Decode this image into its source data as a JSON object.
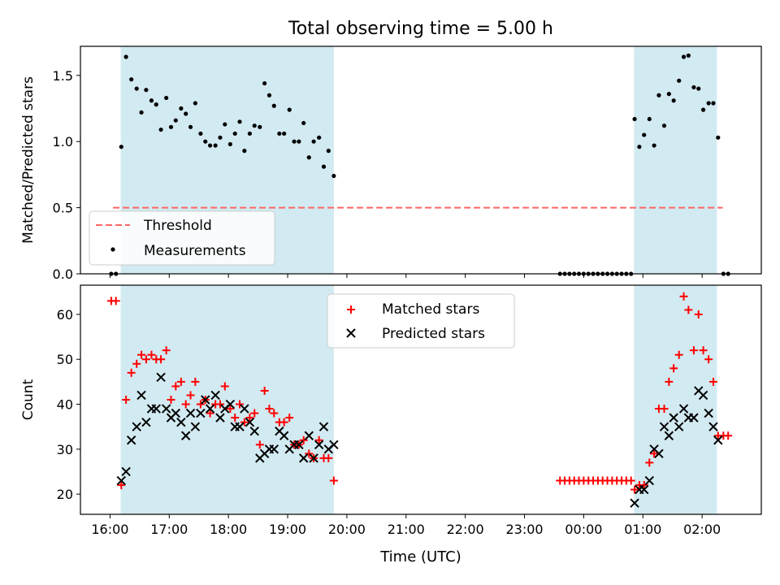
{
  "figure_title": "Total observing time = 5.00 h",
  "xlabel": "Time (UTC)",
  "xtick_labels": [
    "16:00",
    "17:00",
    "18:00",
    "19:00",
    "20:00",
    "21:00",
    "22:00",
    "23:00",
    "00:00",
    "01:00",
    "02:00"
  ],
  "colors": {
    "shade": "#add8e6",
    "threshold": "#ff6666",
    "measurement": "#000000",
    "matched": "#ff0000",
    "predicted": "#000000"
  },
  "chart_data": [
    {
      "type": "scatter",
      "ylabel": "Matched/Predicted stars",
      "ylim": [
        0,
        1.72
      ],
      "yticks": [
        0.0,
        0.5,
        1.0,
        1.5
      ],
      "xlim": [
        15.5,
        27.0
      ],
      "shaded_intervals": [
        [
          16.18,
          19.78
        ],
        [
          24.85,
          26.25
        ]
      ],
      "threshold": {
        "name": "Threshold",
        "y": 0.5,
        "x_range": [
          16.05,
          26.35
        ],
        "style": "dashed"
      },
      "legend": {
        "position": "lower-left",
        "entries": [
          "Threshold",
          "Measurements"
        ]
      },
      "series": [
        {
          "name": "Measurements",
          "points": [
            [
              16.02,
              0.0
            ],
            [
              16.1,
              0.0
            ],
            [
              16.19,
              0.96
            ],
            [
              16.27,
              1.64
            ],
            [
              16.36,
              1.47
            ],
            [
              16.45,
              1.4
            ],
            [
              16.53,
              1.22
            ],
            [
              16.61,
              1.39
            ],
            [
              16.7,
              1.31
            ],
            [
              16.78,
              1.28
            ],
            [
              16.86,
              1.09
            ],
            [
              16.95,
              1.33
            ],
            [
              17.03,
              1.11
            ],
            [
              17.11,
              1.16
            ],
            [
              17.2,
              1.25
            ],
            [
              17.28,
              1.21
            ],
            [
              17.36,
              1.11
            ],
            [
              17.44,
              1.29
            ],
            [
              17.53,
              1.06
            ],
            [
              17.61,
              1.0
            ],
            [
              17.69,
              0.97
            ],
            [
              17.78,
              0.97
            ],
            [
              17.86,
              1.03
            ],
            [
              17.94,
              1.13
            ],
            [
              18.03,
              0.98
            ],
            [
              18.11,
              1.06
            ],
            [
              18.19,
              1.15
            ],
            [
              18.27,
              0.93
            ],
            [
              18.36,
              1.06
            ],
            [
              18.44,
              1.12
            ],
            [
              18.53,
              1.11
            ],
            [
              18.61,
              1.44
            ],
            [
              18.69,
              1.35
            ],
            [
              18.77,
              1.27
            ],
            [
              18.86,
              1.06
            ],
            [
              18.94,
              1.06
            ],
            [
              19.03,
              1.24
            ],
            [
              19.11,
              1.0
            ],
            [
              19.19,
              1.0
            ],
            [
              19.27,
              1.14
            ],
            [
              19.36,
              0.88
            ],
            [
              19.44,
              1.0
            ],
            [
              19.53,
              1.03
            ],
            [
              19.61,
              0.81
            ],
            [
              19.69,
              0.93
            ],
            [
              19.78,
              0.74
            ],
            [
              23.6,
              0.0
            ],
            [
              23.68,
              0.0
            ],
            [
              23.76,
              0.0
            ],
            [
              23.84,
              0.0
            ],
            [
              23.92,
              0.0
            ],
            [
              24.0,
              0.0
            ],
            [
              24.08,
              0.0
            ],
            [
              24.16,
              0.0
            ],
            [
              24.24,
              0.0
            ],
            [
              24.32,
              0.0
            ],
            [
              24.4,
              0.0
            ],
            [
              24.48,
              0.0
            ],
            [
              24.56,
              0.0
            ],
            [
              24.64,
              0.0
            ],
            [
              24.72,
              0.0
            ],
            [
              24.8,
              0.0
            ],
            [
              24.86,
              1.17
            ],
            [
              24.94,
              0.96
            ],
            [
              25.02,
              1.05
            ],
            [
              25.11,
              1.17
            ],
            [
              25.19,
              0.97
            ],
            [
              25.27,
              1.35
            ],
            [
              25.36,
              1.12
            ],
            [
              25.44,
              1.36
            ],
            [
              25.52,
              1.31
            ],
            [
              25.61,
              1.46
            ],
            [
              25.69,
              1.64
            ],
            [
              25.77,
              1.65
            ],
            [
              25.86,
              1.41
            ],
            [
              25.94,
              1.4
            ],
            [
              26.02,
              1.24
            ],
            [
              26.11,
              1.29
            ],
            [
              26.19,
              1.29
            ],
            [
              26.27,
              1.03
            ],
            [
              26.36,
              0.0
            ],
            [
              26.44,
              0.0
            ]
          ]
        }
      ]
    },
    {
      "type": "scatter",
      "ylabel": "Count",
      "ylim": [
        15.5,
        66.5
      ],
      "yticks": [
        20,
        30,
        40,
        50,
        60
      ],
      "xlim": [
        15.5,
        27.0
      ],
      "shaded_intervals": [
        [
          16.18,
          19.78
        ],
        [
          24.85,
          26.25
        ]
      ],
      "legend": {
        "position": "top-center",
        "entries": [
          "Matched stars",
          "Predicted stars"
        ]
      },
      "series": [
        {
          "name": "Matched stars",
          "marker": "plus",
          "points": [
            [
              16.02,
              63
            ],
            [
              16.1,
              63
            ],
            [
              16.19,
              22
            ],
            [
              16.27,
              41
            ],
            [
              16.36,
              47
            ],
            [
              16.45,
              49
            ],
            [
              16.53,
              51
            ],
            [
              16.61,
              50
            ],
            [
              16.7,
              51
            ],
            [
              16.78,
              50
            ],
            [
              16.86,
              50
            ],
            [
              16.95,
              52
            ],
            [
              17.03,
              41
            ],
            [
              17.11,
              44
            ],
            [
              17.2,
              45
            ],
            [
              17.28,
              40
            ],
            [
              17.36,
              42
            ],
            [
              17.44,
              45
            ],
            [
              17.53,
              40
            ],
            [
              17.61,
              41
            ],
            [
              17.69,
              38
            ],
            [
              17.78,
              40
            ],
            [
              17.86,
              40
            ],
            [
              17.94,
              44
            ],
            [
              18.03,
              39
            ],
            [
              18.11,
              37
            ],
            [
              18.19,
              40
            ],
            [
              18.27,
              36
            ],
            [
              18.36,
              37
            ],
            [
              18.44,
              38
            ],
            [
              18.53,
              31
            ],
            [
              18.61,
              43
            ],
            [
              18.69,
              39
            ],
            [
              18.77,
              38
            ],
            [
              18.86,
              36
            ],
            [
              18.94,
              36
            ],
            [
              19.03,
              37
            ],
            [
              19.11,
              31
            ],
            [
              19.19,
              31
            ],
            [
              19.27,
              32
            ],
            [
              19.36,
              29
            ],
            [
              19.44,
              28
            ],
            [
              19.53,
              32
            ],
            [
              19.61,
              28
            ],
            [
              19.69,
              28
            ],
            [
              19.78,
              23
            ],
            [
              23.6,
              23
            ],
            [
              23.68,
              23
            ],
            [
              23.76,
              23
            ],
            [
              23.84,
              23
            ],
            [
              23.92,
              23
            ],
            [
              24.0,
              23
            ],
            [
              24.08,
              23
            ],
            [
              24.16,
              23
            ],
            [
              24.24,
              23
            ],
            [
              24.32,
              23
            ],
            [
              24.4,
              23
            ],
            [
              24.48,
              23
            ],
            [
              24.56,
              23
            ],
            [
              24.64,
              23
            ],
            [
              24.72,
              23
            ],
            [
              24.8,
              23
            ],
            [
              24.86,
              21
            ],
            [
              24.94,
              22
            ],
            [
              25.02,
              22
            ],
            [
              25.11,
              27
            ],
            [
              25.19,
              29
            ],
            [
              25.27,
              39
            ],
            [
              25.36,
              39
            ],
            [
              25.44,
              45
            ],
            [
              25.52,
              48
            ],
            [
              25.61,
              51
            ],
            [
              25.69,
              64
            ],
            [
              25.77,
              61
            ],
            [
              25.86,
              52
            ],
            [
              25.94,
              60
            ],
            [
              26.02,
              52
            ],
            [
              26.11,
              50
            ],
            [
              26.19,
              45
            ],
            [
              26.27,
              33
            ],
            [
              26.36,
              33
            ],
            [
              26.44,
              33
            ]
          ]
        },
        {
          "name": "Predicted stars",
          "marker": "x",
          "points": [
            [
              16.19,
              23
            ],
            [
              16.27,
              25
            ],
            [
              16.36,
              32
            ],
            [
              16.45,
              35
            ],
            [
              16.53,
              42
            ],
            [
              16.61,
              36
            ],
            [
              16.7,
              39
            ],
            [
              16.78,
              39
            ],
            [
              16.86,
              46
            ],
            [
              16.95,
              39
            ],
            [
              17.03,
              37
            ],
            [
              17.11,
              38
            ],
            [
              17.2,
              36
            ],
            [
              17.28,
              33
            ],
            [
              17.36,
              38
            ],
            [
              17.44,
              35
            ],
            [
              17.53,
              38
            ],
            [
              17.61,
              41
            ],
            [
              17.69,
              39
            ],
            [
              17.78,
              42
            ],
            [
              17.86,
              37
            ],
            [
              17.94,
              39
            ],
            [
              18.03,
              40
            ],
            [
              18.11,
              35
            ],
            [
              18.19,
              35
            ],
            [
              18.27,
              39
            ],
            [
              18.36,
              36
            ],
            [
              18.44,
              34
            ],
            [
              18.53,
              28
            ],
            [
              18.61,
              29
            ],
            [
              18.69,
              30
            ],
            [
              18.77,
              30
            ],
            [
              18.86,
              34
            ],
            [
              18.94,
              33
            ],
            [
              19.03,
              30
            ],
            [
              19.11,
              31
            ],
            [
              19.19,
              31
            ],
            [
              19.27,
              28
            ],
            [
              19.36,
              33
            ],
            [
              19.44,
              28
            ],
            [
              19.53,
              31
            ],
            [
              19.61,
              35
            ],
            [
              19.69,
              30
            ],
            [
              19.78,
              31
            ],
            [
              24.86,
              18
            ],
            [
              24.94,
              21
            ],
            [
              25.02,
              21
            ],
            [
              25.11,
              23
            ],
            [
              25.19,
              30
            ],
            [
              25.27,
              29
            ],
            [
              25.36,
              35
            ],
            [
              25.44,
              33
            ],
            [
              25.52,
              37
            ],
            [
              25.61,
              35
            ],
            [
              25.69,
              39
            ],
            [
              25.77,
              37
            ],
            [
              25.86,
              37
            ],
            [
              25.94,
              43
            ],
            [
              26.02,
              42
            ],
            [
              26.11,
              38
            ],
            [
              26.19,
              35
            ],
            [
              26.27,
              32
            ]
          ]
        }
      ]
    }
  ]
}
